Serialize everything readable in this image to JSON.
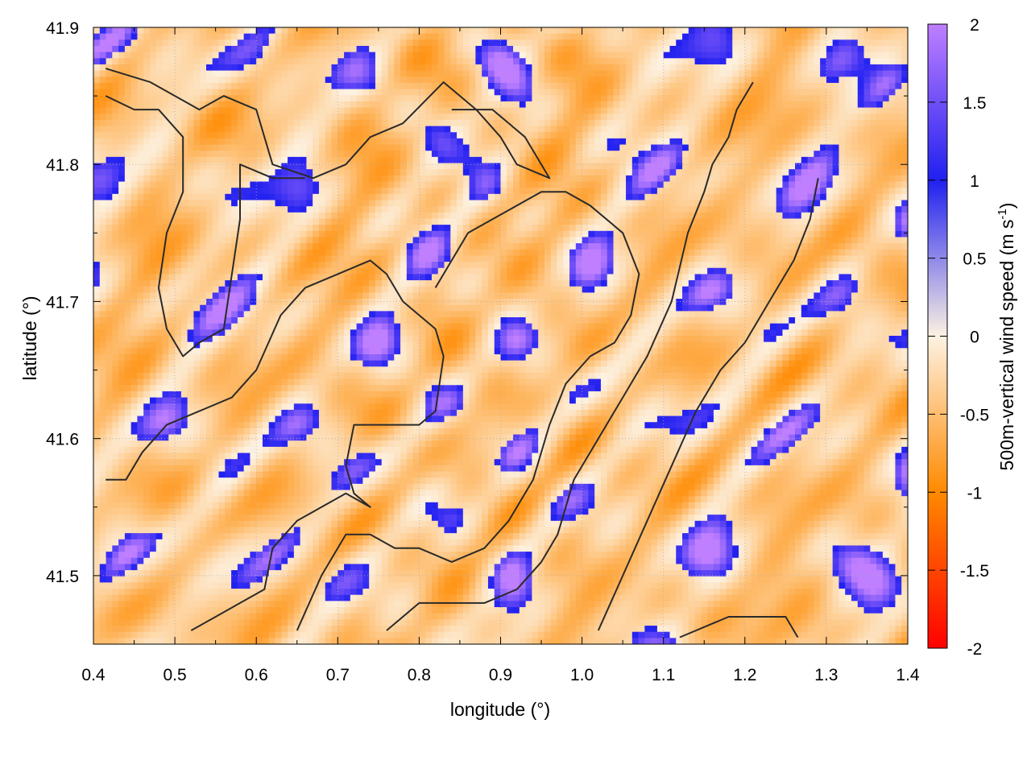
{
  "chart_data": {
    "type": "heatmap",
    "title": "",
    "xlabel": "longitude (°)",
    "ylabel": "latitude (°)",
    "xlim": [
      0.4,
      1.4
    ],
    "ylim": [
      41.45,
      41.9
    ],
    "x_ticks": [
      "0.4",
      "0.5",
      "0.6",
      "0.7",
      "0.8",
      "0.9",
      "1.0",
      "1.1",
      "1.2",
      "1.3",
      "1.4"
    ],
    "y_ticks": [
      "41.5",
      "41.6",
      "41.7",
      "41.8",
      "41.9"
    ],
    "grid": true,
    "colorbar": {
      "label": "500m-vertical wind speed (m s",
      "label_sup": "-1",
      "label_end": ")",
      "range": [
        -2,
        2
      ],
      "ticks": [
        "-2",
        "-1.5",
        "-1",
        "-0.5",
        "0",
        "0.5",
        "1",
        "1.5",
        "2"
      ],
      "colors": [
        "#ff0000",
        "#ff8a00",
        "#fdf2e2",
        "#2020f0",
        "#bf7fff"
      ]
    },
    "field": {
      "description_grid": [
        60,
        45
      ],
      "value_range": [
        -2,
        2
      ]
    },
    "contours": [
      [
        [
          0.415,
          41.87
        ],
        [
          0.47,
          41.86
        ],
        [
          0.53,
          41.84
        ],
        [
          0.56,
          41.85
        ],
        [
          0.6,
          41.84
        ],
        [
          0.62,
          41.8
        ],
        [
          0.67,
          41.79
        ],
        [
          0.71,
          41.8
        ],
        [
          0.74,
          41.82
        ],
        [
          0.78,
          41.83
        ],
        [
          0.83,
          41.86
        ],
        [
          0.87,
          41.84
        ],
        [
          0.9,
          41.82
        ],
        [
          0.92,
          41.8
        ],
        [
          0.96,
          41.79
        ],
        [
          0.93,
          41.82
        ],
        [
          0.89,
          41.84
        ],
        [
          0.84,
          41.84
        ]
      ],
      [
        [
          0.415,
          41.85
        ],
        [
          0.45,
          41.84
        ],
        [
          0.48,
          41.84
        ],
        [
          0.51,
          41.82
        ],
        [
          0.51,
          41.78
        ],
        [
          0.49,
          41.75
        ],
        [
          0.48,
          41.71
        ],
        [
          0.49,
          41.68
        ],
        [
          0.51,
          41.66
        ],
        [
          0.53,
          41.67
        ],
        [
          0.56,
          41.68
        ],
        [
          0.57,
          41.72
        ],
        [
          0.58,
          41.76
        ],
        [
          0.58,
          41.8
        ],
        [
          0.62,
          41.79
        ],
        [
          0.66,
          41.79
        ]
      ],
      [
        [
          0.415,
          41.57
        ],
        [
          0.44,
          41.57
        ],
        [
          0.46,
          41.59
        ],
        [
          0.49,
          41.61
        ],
        [
          0.53,
          41.62
        ],
        [
          0.57,
          41.63
        ],
        [
          0.6,
          41.65
        ],
        [
          0.63,
          41.69
        ],
        [
          0.66,
          41.71
        ],
        [
          0.7,
          41.72
        ],
        [
          0.74,
          41.73
        ],
        [
          0.76,
          41.72
        ],
        [
          0.78,
          41.7
        ],
        [
          0.82,
          41.68
        ],
        [
          0.83,
          41.66
        ],
        [
          0.82,
          41.62
        ],
        [
          0.8,
          41.61
        ],
        [
          0.76,
          41.61
        ],
        [
          0.72,
          41.61
        ],
        [
          0.71,
          41.58
        ],
        [
          0.72,
          41.56
        ],
        [
          0.74,
          41.55
        ],
        [
          0.71,
          41.56
        ],
        [
          0.68,
          41.55
        ],
        [
          0.65,
          41.54
        ],
        [
          0.62,
          41.52
        ],
        [
          0.61,
          41.49
        ],
        [
          0.58,
          41.48
        ],
        [
          0.55,
          41.47
        ],
        [
          0.52,
          41.46
        ]
      ],
      [
        [
          0.65,
          41.46
        ],
        [
          0.68,
          41.5
        ],
        [
          0.71,
          41.53
        ],
        [
          0.74,
          41.53
        ],
        [
          0.77,
          41.52
        ],
        [
          0.8,
          41.52
        ],
        [
          0.84,
          41.51
        ],
        [
          0.88,
          41.52
        ],
        [
          0.91,
          41.54
        ],
        [
          0.94,
          41.57
        ],
        [
          0.96,
          41.61
        ],
        [
          0.98,
          41.64
        ],
        [
          1.01,
          41.66
        ],
        [
          1.04,
          41.67
        ],
        [
          1.06,
          41.69
        ],
        [
          1.07,
          41.72
        ],
        [
          1.05,
          41.75
        ],
        [
          1.01,
          41.77
        ],
        [
          0.98,
          41.78
        ],
        [
          0.95,
          41.78
        ],
        [
          0.92,
          41.77
        ],
        [
          0.89,
          41.76
        ],
        [
          0.86,
          41.75
        ],
        [
          0.84,
          41.73
        ],
        [
          0.82,
          41.71
        ]
      ],
      [
        [
          0.76,
          41.46
        ],
        [
          0.8,
          41.48
        ],
        [
          0.84,
          41.48
        ],
        [
          0.88,
          41.48
        ],
        [
          0.92,
          41.49
        ],
        [
          0.95,
          41.51
        ],
        [
          0.97,
          41.53
        ],
        [
          0.99,
          41.57
        ],
        [
          1.02,
          41.6
        ],
        [
          1.05,
          41.63
        ],
        [
          1.08,
          41.66
        ],
        [
          1.11,
          41.7
        ],
        [
          1.13,
          41.75
        ],
        [
          1.15,
          41.78
        ],
        [
          1.16,
          41.8
        ],
        [
          1.18,
          41.82
        ],
        [
          1.19,
          41.84
        ],
        [
          1.21,
          41.86
        ]
      ],
      [
        [
          1.02,
          41.46
        ],
        [
          1.05,
          41.5
        ],
        [
          1.08,
          41.54
        ],
        [
          1.11,
          41.58
        ],
        [
          1.14,
          41.62
        ],
        [
          1.17,
          41.65
        ],
        [
          1.2,
          41.67
        ],
        [
          1.23,
          41.7
        ],
        [
          1.26,
          41.73
        ],
        [
          1.28,
          41.76
        ],
        [
          1.29,
          41.79
        ]
      ],
      [
        [
          1.12,
          41.455
        ],
        [
          1.18,
          41.47
        ],
        [
          1.22,
          41.47
        ],
        [
          1.25,
          41.47
        ],
        [
          1.265,
          41.455
        ]
      ]
    ]
  }
}
